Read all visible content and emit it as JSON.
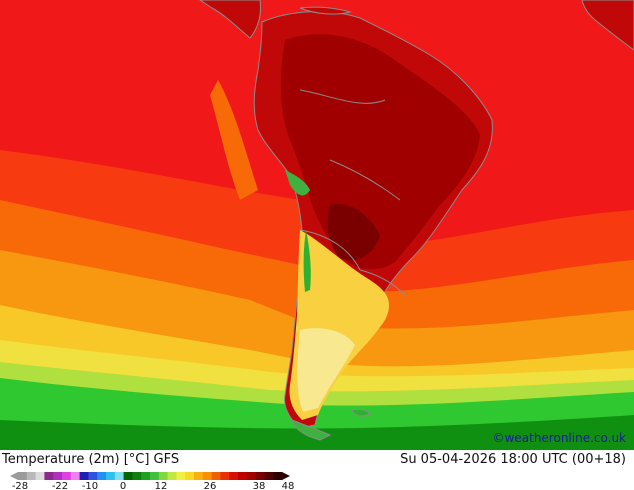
{
  "header": {
    "title": "Temperature (2m) [°C] GFS",
    "datetime": "Su 05-04-2026 18:00 UTC (00+18)",
    "credit": "©weatheronline.co.uk"
  },
  "legend": {
    "ticks": [
      "-28",
      "-22",
      "-10",
      "0",
      "12",
      "26",
      "38",
      "48"
    ],
    "colors": [
      "#9b9b9b",
      "#b9b9b9",
      "#dcdcdc",
      "#8b2a8b",
      "#b030c0",
      "#e040e0",
      "#f080f0",
      "#2020b0",
      "#3050e0",
      "#2090f0",
      "#30c0f0",
      "#80e0f0",
      "#006400",
      "#108010",
      "#20a020",
      "#40c040",
      "#80d840",
      "#c0e840",
      "#f0f040",
      "#f8d820",
      "#f8b010",
      "#f89000",
      "#f06000",
      "#e83000",
      "#d81000",
      "#c00000",
      "#a00000",
      "#780000",
      "#500000",
      "#2a0000"
    ]
  },
  "map": {
    "colors": {
      "ocean_hot": "#f01818",
      "ocean_warm": "#f83010",
      "ocean_orange": "#f86a08",
      "ocean_amber": "#f8a010",
      "ocean_yellow": "#f8d030",
      "ocean_lightgreen": "#a0e040",
      "ocean_green": "#20c020",
      "ocean_darkgreen": "#109010",
      "land_maroon": "#a00000",
      "land_darkred": "#c00808",
      "land_yellow": "#f8e060",
      "coast": "#8c8c8c"
    }
  }
}
